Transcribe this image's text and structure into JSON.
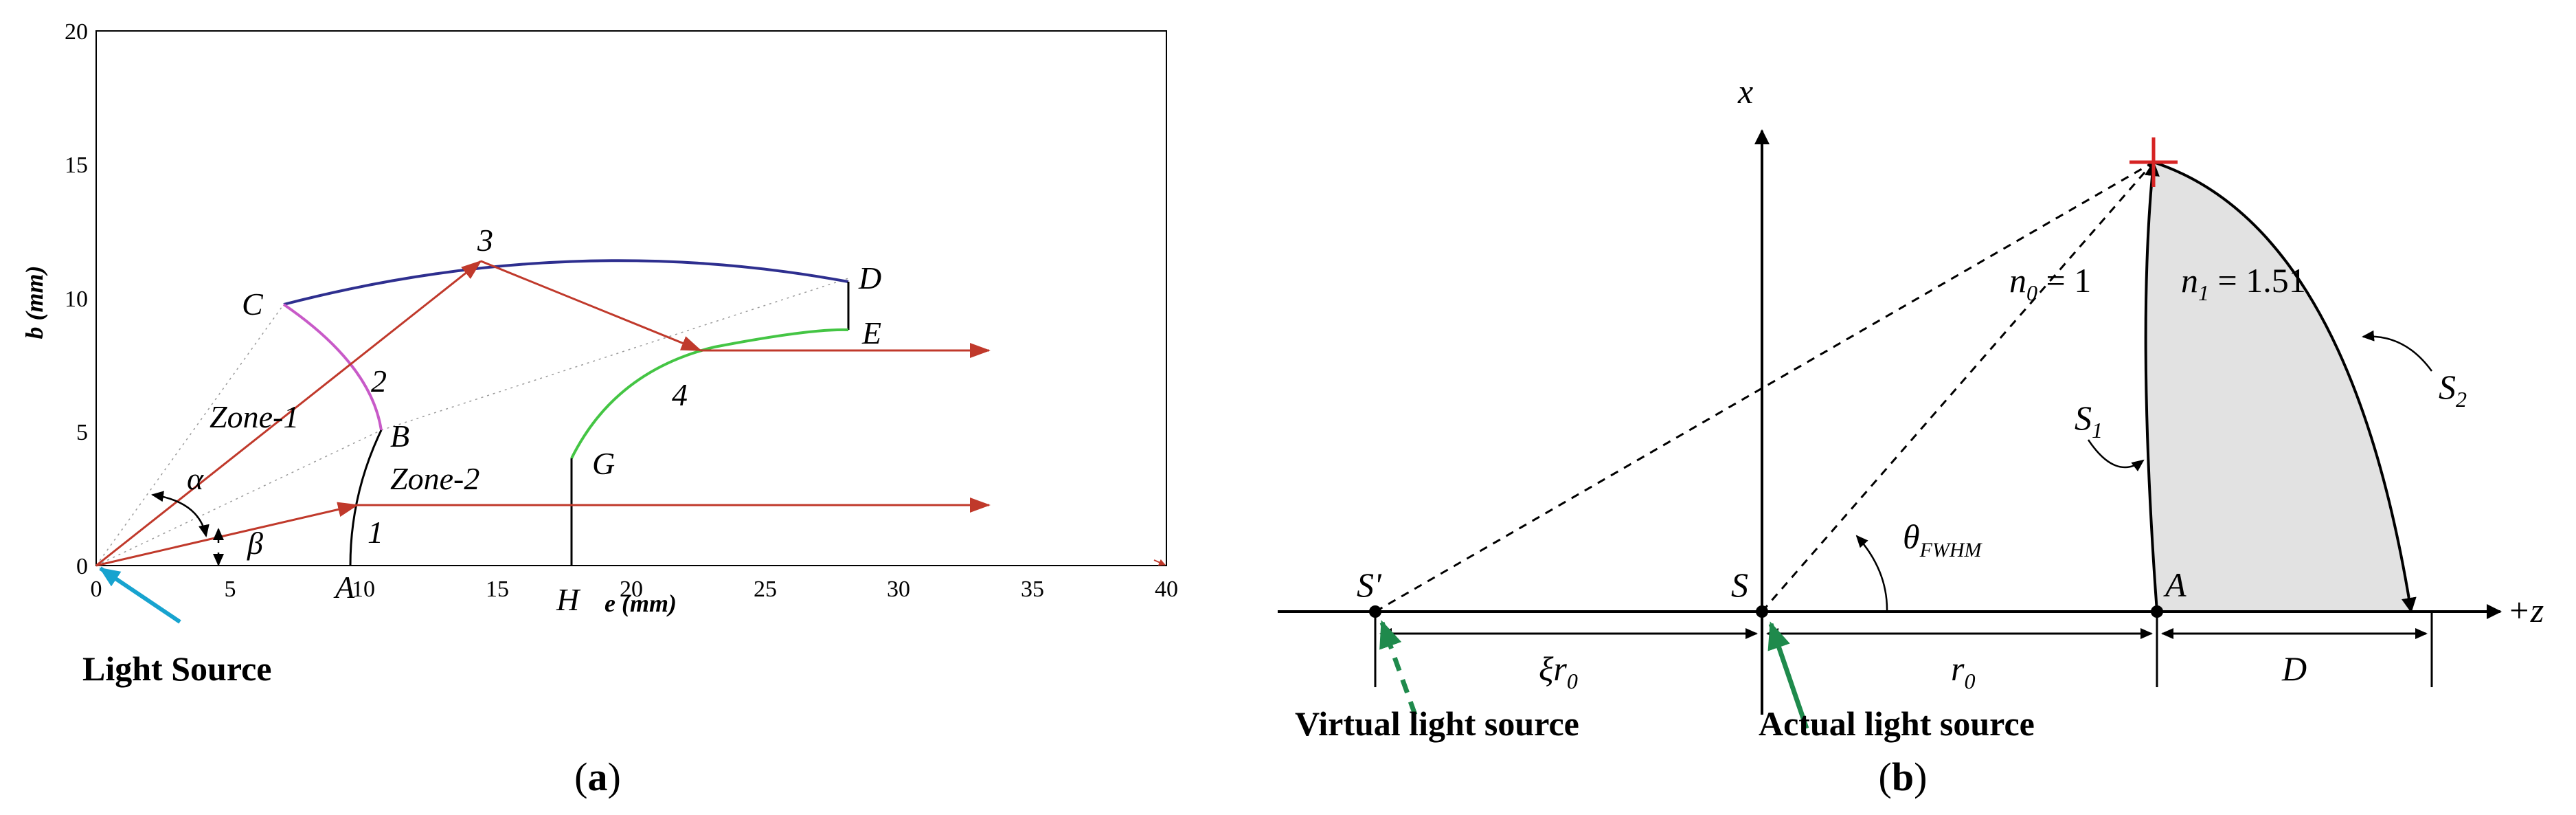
{
  "panel_a": {
    "caption_open": "(",
    "caption_letter": "a",
    "caption_close": ")",
    "x_axis_label": "e (mm)",
    "y_axis_label": "b (mm)",
    "x_ticks": [
      "0",
      "5",
      "10",
      "15",
      "20",
      "25",
      "30",
      "35",
      "40"
    ],
    "y_ticks": [
      "0",
      "5",
      "10",
      "15",
      "20"
    ],
    "point_labels": {
      "A": "A",
      "B": "B",
      "C": "C",
      "D": "D",
      "E": "E",
      "G": "G",
      "H": "H"
    },
    "ray_numbers": {
      "n1": "1",
      "n2": "2",
      "n3": "3",
      "n4": "4"
    },
    "zone_1": "Zone-1",
    "zone_2": "Zone-2",
    "angle_alpha": "α",
    "angle_beta": "β",
    "light_source": "Light Source",
    "colors": {
      "ray": "#c0392b",
      "top_surface": "#2e2f8f",
      "left_surface": "#c85ac8",
      "right_surface": "#44c544",
      "source_arrow": "#17a3cf"
    }
  },
  "panel_b": {
    "caption_open": "(",
    "caption_letter": "b",
    "caption_close": ")",
    "x_axis": "x",
    "z_axis": "+z",
    "S_prime": "S'",
    "S": "S",
    "A": "A",
    "theta_symbol": "θ",
    "theta_sub": "FWHM",
    "n0_symbol": "n",
    "n0_sub": "0",
    "n0_value": " = 1",
    "n1_symbol": "n",
    "n1_sub": "1",
    "n1_value": " = 1.51",
    "S1_symbol": "S",
    "S1_sub": "1",
    "S2_symbol": "S",
    "S2_sub": "2",
    "xi_r0_prefix": "ξr",
    "xi_r0_sub": "0",
    "r0_symbol": "r",
    "r0_sub": "0",
    "D": "D",
    "virtual_source": "Virtual light source",
    "actual_source": "Actual light source",
    "colors": {
      "lens_fill": "#e2e2e2",
      "marker": "#d62424",
      "source_arrow": "#1f8a4c"
    }
  }
}
